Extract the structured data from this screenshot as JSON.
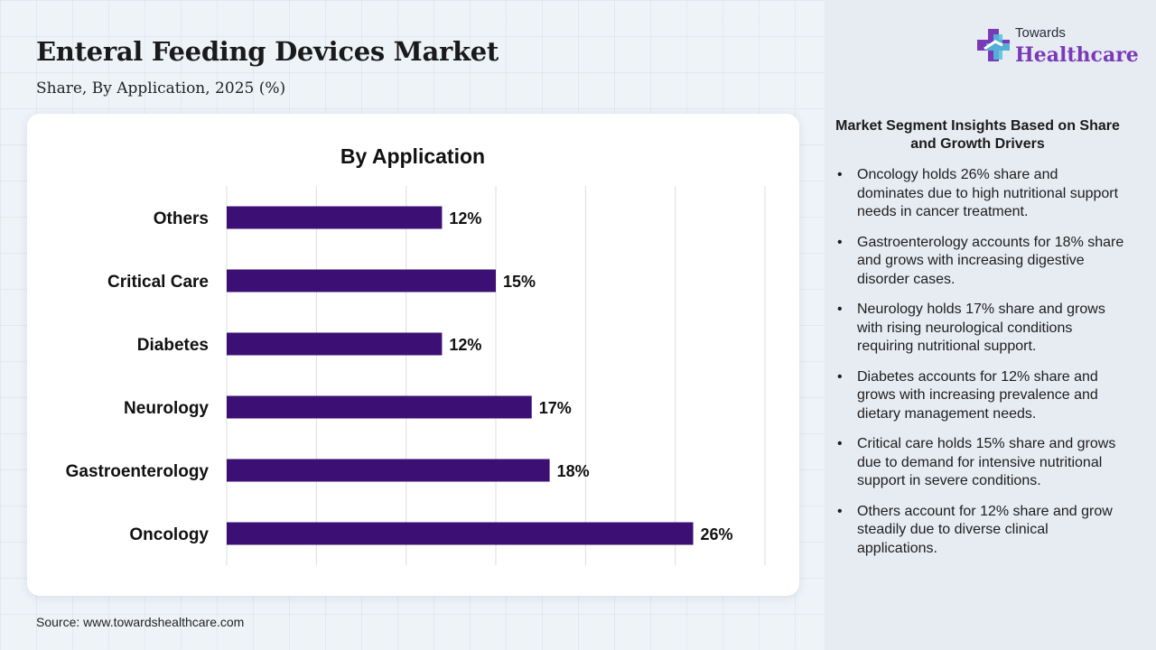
{
  "header": {
    "title": "Enteral Feeding Devices Market",
    "subtitle": "Share, By Application, 2025 (%)"
  },
  "logo": {
    "line1": "Towards",
    "line2": "Healthcare"
  },
  "colors": {
    "bar": "#3b0f74",
    "logo_accent": "#7a3ab8",
    "logo_cross": "#4fc3d9"
  },
  "chart_data": {
    "type": "bar",
    "orientation": "horizontal",
    "title": "By Application",
    "categories": [
      "Others",
      "Critical Care",
      "Diabetes",
      "Neurology",
      "Gastroenterology",
      "Oncology"
    ],
    "values": [
      12,
      15,
      12,
      17,
      18,
      26
    ],
    "value_suffix": "%",
    "xlim": [
      0,
      30
    ],
    "xlabel": "",
    "ylabel": "",
    "grid": true,
    "legend": "none"
  },
  "insights": {
    "title": "Market Segment Insights Based on Share and Growth Drivers",
    "items": [
      "Oncology holds 26% share and dominates due to high nutritional support needs in cancer treatment.",
      "Gastroenterology accounts for 18% share and grows with increasing digestive disorder cases.",
      "Neurology holds 17% share and grows with rising neurological conditions requiring nutritional support.",
      "Diabetes accounts for 12% share and grows with increasing prevalence and dietary management needs.",
      "Critical care holds 15% share and grows due to demand for intensive nutritional support in severe conditions.",
      "Others account for 12% share and grow steadily due to diverse clinical applications."
    ]
  },
  "footer": {
    "source": "Source: www.towardshealthcare.com"
  }
}
